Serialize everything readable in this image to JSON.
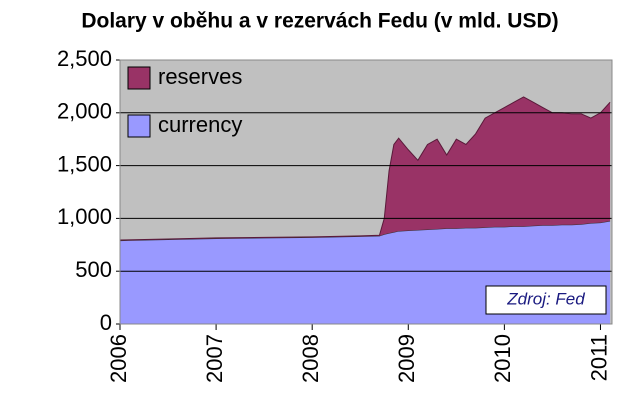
{
  "chart_data": {
    "type": "stacked-area",
    "title": "Dolary v oběhu a v rezervách Fedu (v mld. USD)",
    "x": [
      2006.0,
      2006.5,
      2007.0,
      2007.5,
      2008.0,
      2008.5,
      2008.7,
      2008.75,
      2008.8,
      2008.85,
      2008.9,
      2009.0,
      2009.1,
      2009.2,
      2009.3,
      2009.4,
      2009.5,
      2009.6,
      2009.7,
      2009.8,
      2009.9,
      2010.0,
      2010.1,
      2010.2,
      2010.3,
      2010.4,
      2010.5,
      2010.6,
      2010.7,
      2010.8,
      2010.9,
      2011.0,
      2011.1
    ],
    "series": [
      {
        "name": "currency",
        "color": "#9999ff",
        "values": [
          790,
          800,
          810,
          815,
          820,
          830,
          835,
          850,
          860,
          870,
          880,
          885,
          890,
          895,
          900,
          905,
          905,
          910,
          910,
          915,
          920,
          920,
          925,
          925,
          930,
          935,
          935,
          940,
          940,
          945,
          955,
          960,
          975
        ]
      },
      {
        "name": "reserves",
        "color": "#993366",
        "values": [
          5,
          5,
          5,
          5,
          5,
          5,
          5,
          150,
          590,
          830,
          880,
          765,
          660,
          805,
          850,
          695,
          845,
          790,
          890,
          1035,
          1080,
          1130,
          1175,
          1225,
          1170,
          1115,
          1065,
          1060,
          1050,
          1045,
          995,
          1040,
          1125
        ]
      }
    ],
    "xlim": [
      2006,
      2011.12
    ],
    "xticks": [
      2006,
      2007,
      2008,
      2009,
      2010,
      2011
    ],
    "ylim": [
      0,
      2500
    ],
    "yticks": [
      0,
      500,
      {
        "value": 1000,
        "label": "1,000"
      },
      {
        "value": 1500,
        "label": "1,500"
      },
      {
        "value": 2000,
        "label": "2,000"
      },
      {
        "value": 2500,
        "label": "2,500"
      }
    ],
    "grid": true,
    "legend": "top-left",
    "background": "#c0c0c0",
    "annotation": "Zdroj: Fed"
  }
}
